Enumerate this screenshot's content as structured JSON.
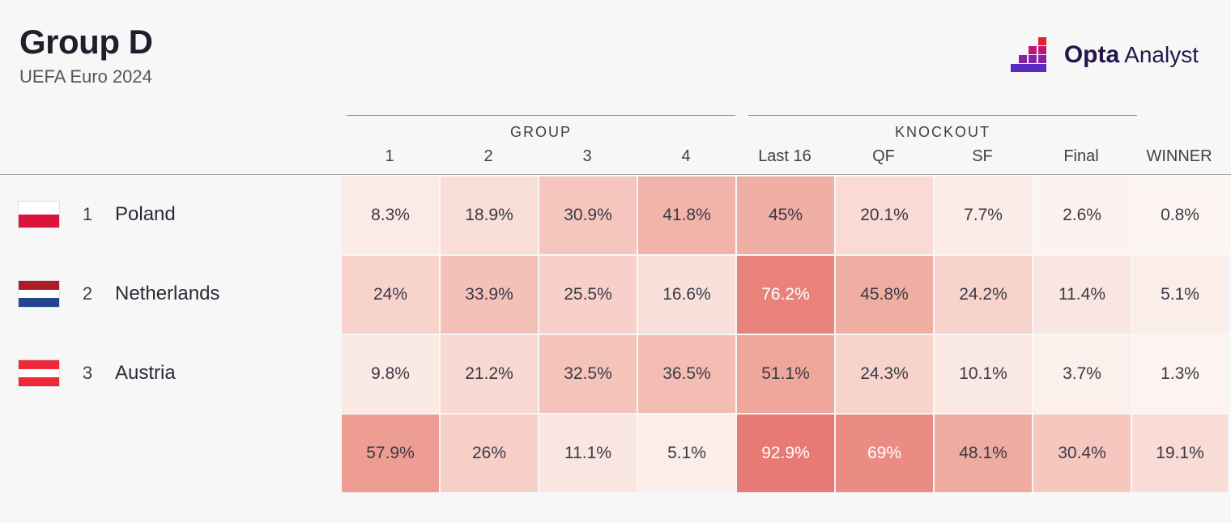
{
  "header": {
    "title": "Group D",
    "subtitle": "UEFA Euro 2024"
  },
  "logo": {
    "brand_bold": "Opta",
    "brand_light": "Analyst",
    "mark_colors": [
      "#ea1f2c",
      "#c4147a",
      "#8a1fa8",
      "#5a2bc0"
    ]
  },
  "columns": {
    "group_header": "GROUP",
    "knockout_header": "KNOCKOUT",
    "group_cols": [
      "1",
      "2",
      "3",
      "4"
    ],
    "knockout_cols": [
      "Last 16",
      "QF",
      "SF",
      "Final"
    ],
    "winner_col": "WINNER"
  },
  "heatmap_palette": {
    "base": "#fdf2f0",
    "full": "#e77a74"
  },
  "teams": [
    {
      "rank": "1",
      "name": "Poland",
      "flag_stripes": [
        "#ffffff",
        "#dc143c"
      ],
      "cells": [
        {
          "v": "8.3%",
          "bg": "#fbeae6",
          "t": "dark"
        },
        {
          "v": "18.9%",
          "bg": "#f9ddd7",
          "t": "dark"
        },
        {
          "v": "30.9%",
          "bg": "#f4c6be",
          "t": "dark"
        },
        {
          "v": "41.8%",
          "bg": "#f1b4aa",
          "t": "dark"
        },
        {
          "v": "45%",
          "bg": "#f0afa4",
          "t": "dark"
        },
        {
          "v": "20.1%",
          "bg": "#f9dad4",
          "t": "dark"
        },
        {
          "v": "7.7%",
          "bg": "#fbece8",
          "t": "dark"
        },
        {
          "v": "2.6%",
          "bg": "#fcf2ef",
          "t": "dark"
        },
        {
          "v": "0.8%",
          "bg": "#fdf5f2",
          "t": "dark"
        }
      ]
    },
    {
      "rank": "2",
      "name": "Netherlands",
      "flag_stripes": [
        "#ae1c28",
        "#ffffff",
        "#21468b"
      ],
      "cells": [
        {
          "v": "24%",
          "bg": "#f7d3cc",
          "t": "dark"
        },
        {
          "v": "33.9%",
          "bg": "#f4c1b8",
          "t": "dark"
        },
        {
          "v": "25.5%",
          "bg": "#f7d0c9",
          "t": "dark"
        },
        {
          "v": "16.6%",
          "bg": "#f9e0da",
          "t": "dark"
        },
        {
          "v": "76.2%",
          "bg": "#e9837a",
          "t": "light"
        },
        {
          "v": "45.8%",
          "bg": "#f0aea3",
          "t": "dark"
        },
        {
          "v": "24.2%",
          "bg": "#f7d3cc",
          "t": "dark"
        },
        {
          "v": "11.4%",
          "bg": "#fae6e1",
          "t": "dark"
        },
        {
          "v": "5.1%",
          "bg": "#fbeee9",
          "t": "dark"
        }
      ]
    },
    {
      "rank": "3",
      "name": "Austria",
      "flag_stripes": [
        "#ed2939",
        "#ffffff",
        "#ed2939"
      ],
      "cells": [
        {
          "v": "9.8%",
          "bg": "#fbe9e4",
          "t": "dark"
        },
        {
          "v": "21.2%",
          "bg": "#f8d8d1",
          "t": "dark"
        },
        {
          "v": "32.5%",
          "bg": "#f4c3ba",
          "t": "dark"
        },
        {
          "v": "36.5%",
          "bg": "#f3bdb3",
          "t": "dark"
        },
        {
          "v": "51.1%",
          "bg": "#efa69b",
          "t": "dark"
        },
        {
          "v": "24.3%",
          "bg": "#f7d3cc",
          "t": "dark"
        },
        {
          "v": "10.1%",
          "bg": "#fae8e3",
          "t": "dark"
        },
        {
          "v": "3.7%",
          "bg": "#fcf0ed",
          "t": "dark"
        },
        {
          "v": "1.3%",
          "bg": "#fdf4f1",
          "t": "dark"
        }
      ]
    },
    {
      "rank": "",
      "name": "",
      "flag_stripes": [],
      "cells": [
        {
          "v": "57.9%",
          "bg": "#ed9d92",
          "t": "dark"
        },
        {
          "v": "26%",
          "bg": "#f6cfc7",
          "t": "dark"
        },
        {
          "v": "11.1%",
          "bg": "#fae6e1",
          "t": "dark"
        },
        {
          "v": "5.1%",
          "bg": "#fbeee9",
          "t": "dark"
        },
        {
          "v": "92.9%",
          "bg": "#e77a74",
          "t": "light"
        },
        {
          "v": "69%",
          "bg": "#ea8c83",
          "t": "light"
        },
        {
          "v": "48.1%",
          "bg": "#efab9f",
          "t": "dark"
        },
        {
          "v": "30.4%",
          "bg": "#f5c7be",
          "t": "dark"
        },
        {
          "v": "19.1%",
          "bg": "#f8dcd5",
          "t": "dark"
        }
      ]
    }
  ]
}
